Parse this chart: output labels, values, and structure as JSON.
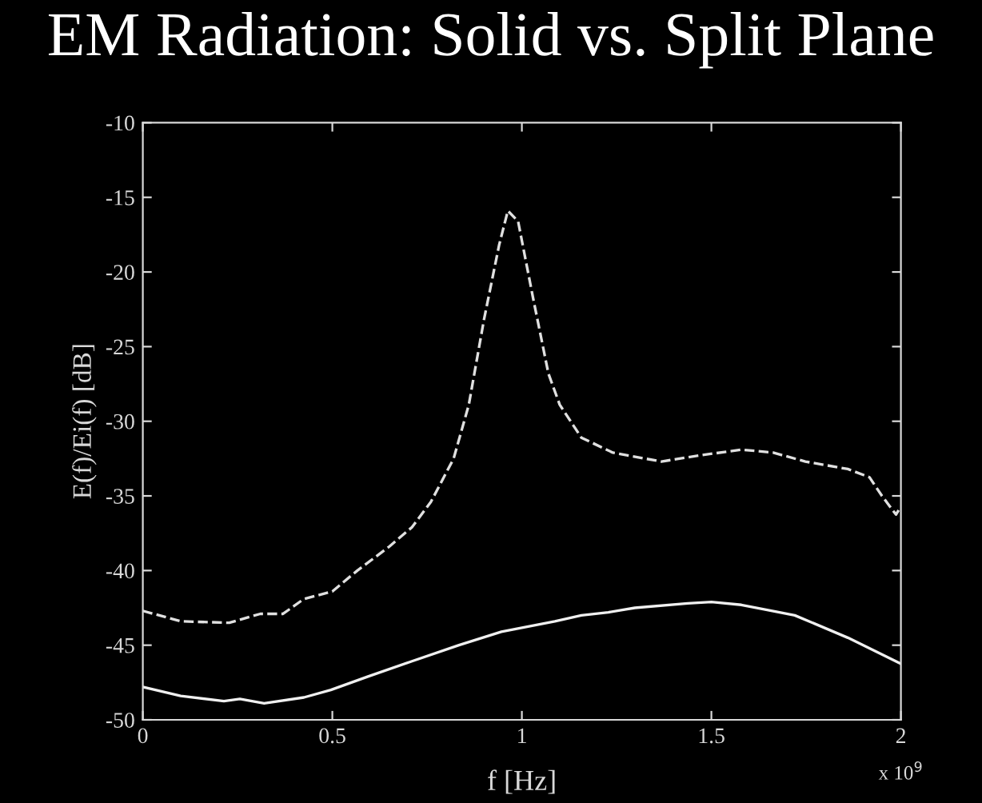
{
  "chart_data": {
    "type": "line",
    "title": "EM Radiation: Solid vs. Split Plane",
    "xlabel": "f [Hz]",
    "ylabel": "E(f)/Ei(f) [dB]",
    "annotations": [
      "x 10$^{9}$"
    ],
    "xlim": [
      0,
      2
    ],
    "xticks": [
      0,
      0.5,
      1,
      1.5,
      2
    ],
    "ylim": [
      -50,
      -10
    ],
    "yticks": [
      -50,
      -45,
      -40,
      -35,
      -30,
      -25,
      -20,
      -15,
      -10
    ],
    "grid": false,
    "legend": false,
    "series": [
      {
        "color": "#e0e0e0",
        "line_style": "dashed",
        "x": [
          0,
          0.1,
          0.228,
          0.31,
          0.37,
          0.425,
          0.5,
          0.566,
          0.65,
          0.71,
          0.76,
          0.82,
          0.86,
          0.9,
          0.94,
          0.963,
          0.99,
          1.03,
          1.07,
          1.1,
          1.157,
          1.24,
          1.368,
          1.466,
          1.579,
          1.663,
          1.748,
          1.86,
          1.917,
          1.95,
          1.987,
          2.0
        ],
        "values": [
          -42.7,
          -43.4,
          -43.5,
          -42.9,
          -42.9,
          -41.9,
          -41.4,
          -40,
          -38.4,
          -37.1,
          -35.4,
          -32.5,
          -28.9,
          -23.2,
          -18.2,
          -15.9,
          -16.6,
          -21.8,
          -26.8,
          -28.9,
          -31.1,
          -32.1,
          -32.7,
          -32.3,
          -31.9,
          -32.1,
          -32.7,
          -33.2,
          -33.75,
          -35,
          -36.25,
          -35.7
        ]
      },
      {
        "color": "#f0f0f0",
        "line_style": "solid",
        "x": [
          0,
          0.1,
          0.214,
          0.256,
          0.32,
          0.425,
          0.496,
          0.594,
          0.707,
          0.834,
          0.946,
          1.087,
          1.157,
          1.228,
          1.298,
          1.438,
          1.5,
          1.579,
          1.72,
          1.86,
          2.0
        ],
        "values": [
          -47.8,
          -48.4,
          -48.75,
          -48.6,
          -48.9,
          -48.5,
          -48.0,
          -47.1,
          -46.1,
          -45,
          -44.1,
          -43.4,
          -43.0,
          -42.8,
          -42.5,
          -42.2,
          -42.1,
          -42.3,
          -43.0,
          -44.5,
          -46.25
        ]
      }
    ]
  }
}
